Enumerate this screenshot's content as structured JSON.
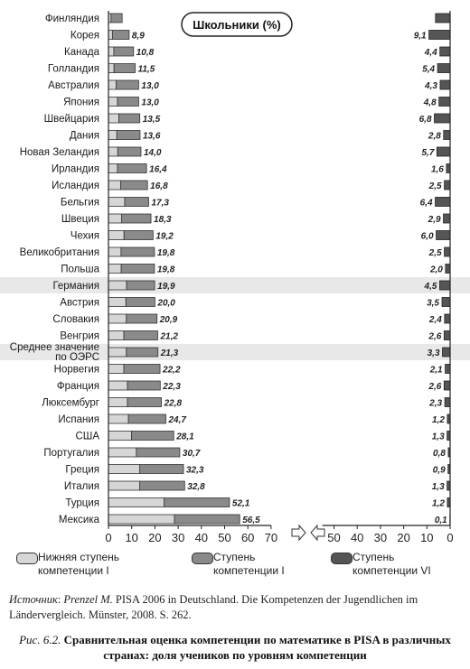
{
  "chart_data": {
    "type": "bar",
    "title": "Школьники (%)",
    "categories": [
      "Финляндия",
      "Корея",
      "Канада",
      "Голландия",
      "Австралия",
      "Япония",
      "Швейцария",
      "Дания",
      "Новая Зеландия",
      "Ирландия",
      "Исландия",
      "Бельгия",
      "Швеция",
      "Чехия",
      "Великобритания",
      "Польша",
      "Германия",
      "Австрия",
      "Словакия",
      "Венгрия",
      "Среднее значение по ОЭРС",
      "Норвегия",
      "Франция",
      "Люксембург",
      "Испания",
      "США",
      "Португалия",
      "Греция",
      "Италия",
      "Турция",
      "Мексика"
    ],
    "highlighted": [
      "Германия",
      "Среднее значение по ОЭРС"
    ],
    "left_panel": {
      "series": [
        {
          "name": "Нижняя ступень компетенции I",
          "color": "#d6d6d6",
          "values": [
            1.1,
            1.7,
            2.3,
            2.4,
            3.3,
            3.9,
            4.5,
            3.6,
            4.0,
            3.9,
            5.3,
            7.0,
            5.6,
            6.7,
            5.4,
            5.5,
            7.8,
            7.5,
            7.7,
            6.6,
            7.7,
            6.6,
            8.2,
            8.2,
            8.6,
            9.9,
            12.0,
            13.5,
            13.5,
            24.0,
            28.4
          ]
        },
        {
          "name": "Ступень компетенции I",
          "color": "#8a8a8a",
          "values": [
            4.8,
            7.2,
            8.5,
            9.1,
            9.7,
            9.1,
            9.0,
            10.0,
            10.0,
            12.5,
            11.5,
            10.3,
            12.7,
            12.5,
            14.4,
            14.3,
            12.1,
            12.5,
            13.2,
            14.6,
            13.6,
            15.6,
            14.1,
            14.6,
            16.1,
            18.2,
            18.7,
            18.8,
            19.3,
            28.1,
            28.1
          ]
        }
      ],
      "totals": [
        6.0,
        8.9,
        10.8,
        11.5,
        13.0,
        13.0,
        13.5,
        13.6,
        14.0,
        16.4,
        16.8,
        17.3,
        18.3,
        19.2,
        19.8,
        19.8,
        19.9,
        20.0,
        20.9,
        21.2,
        21.3,
        22.2,
        22.3,
        22.8,
        24.7,
        28.1,
        30.7,
        32.3,
        32.8,
        52.1,
        56.5
      ],
      "total_labels": [
        "",
        "8,9",
        "10,8",
        "11,5",
        "13,0",
        "13,0",
        "13,5",
        "13,6",
        "14,0",
        "16,4",
        "16,8",
        "17,3",
        "18,3",
        "19,2",
        "19,8",
        "19,8",
        "19,9",
        "20,0",
        "20,9",
        "21,2",
        "21,3",
        "22,2",
        "22,3",
        "22,8",
        "24,7",
        "28,1",
        "30,7",
        "32,3",
        "32,8",
        "52,1",
        "56,5"
      ],
      "x_ticks": [
        "0",
        "10",
        "20",
        "30",
        "40",
        "50",
        "60",
        "70"
      ],
      "xlim": [
        0,
        70
      ]
    },
    "right_panel": {
      "series": [
        {
          "name": "Ступень компетенции VI",
          "color": "#555555",
          "values": [
            6.3,
            9.1,
            4.4,
            5.4,
            4.3,
            4.8,
            6.8,
            2.8,
            5.7,
            1.6,
            2.5,
            6.4,
            2.9,
            6.0,
            2.5,
            2.0,
            4.5,
            3.5,
            2.4,
            2.6,
            3.3,
            2.1,
            2.6,
            2.3,
            1.2,
            1.3,
            0.8,
            0.9,
            1.3,
            1.2,
            0.1
          ]
        }
      ],
      "value_labels": [
        "",
        "9,1",
        "4,4",
        "5,4",
        "4,3",
        "4,8",
        "6,8",
        "2,8",
        "5,7",
        "1,6",
        "2,5",
        "6,4",
        "2,9",
        "6,0",
        "2,5",
        "2,0",
        "4,5",
        "3,5",
        "2,4",
        "2,6",
        "3,3",
        "2,1",
        "2,6",
        "2,3",
        "1,2",
        "1,3",
        "0,8",
        "0,9",
        "1,3",
        "1,2",
        "0,1"
      ],
      "x_ticks": [
        "50",
        "40",
        "30",
        "20",
        "10",
        "0"
      ],
      "xlim": [
        0,
        55
      ],
      "direction": "reversed"
    },
    "legend": [
      "Нижняя ступень компетенции I",
      "Ступень компетенции I",
      "Ступень компетенции VI"
    ],
    "grid": false
  },
  "legend_items": [
    {
      "label": "Нижняя ступень компетенции I",
      "color": "#d6d6d6"
    },
    {
      "label": "Ступень компетенции I",
      "color": "#8a8a8a"
    },
    {
      "label": "Ступень компетенции VI",
      "color": "#555555"
    }
  ],
  "caption": {
    "source_label": "Источник",
    "source_author": "Prenzel M.",
    "source_text": "PISA 2006 in Deutschland. Die Kompetenzen der Jugendlichen im Ländervergleich. Münster, 2008. S. 262.",
    "figure_number": "Рис. 6.2.",
    "figure_title": "Сравнительная оценка компетенции по математике в PISA в различных странах: доля учеников по уровням компетенции"
  }
}
